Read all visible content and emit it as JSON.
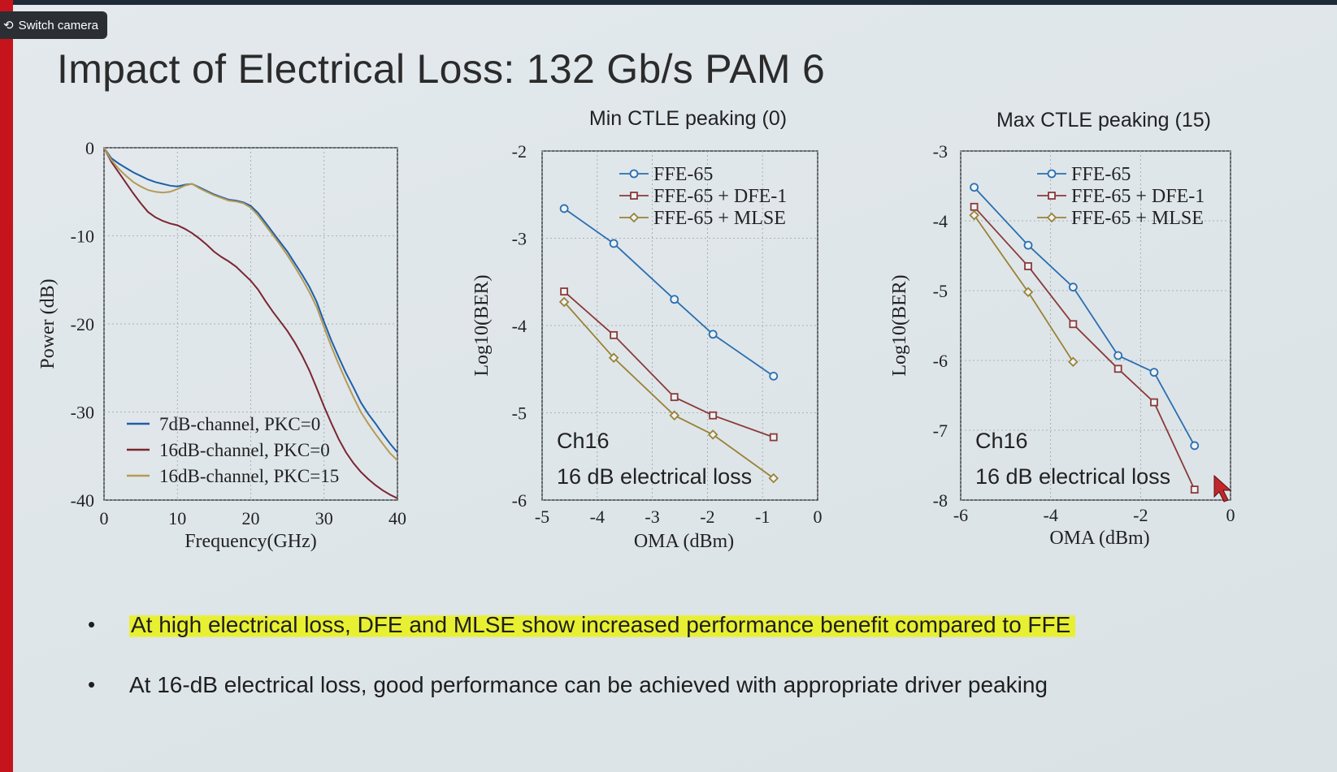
{
  "camera_button": {
    "label": "Switch camera",
    "icon": "switch-camera-icon"
  },
  "slide": {
    "title": "Impact of Electrical Loss: 132 Gb/s PAM 6",
    "bullets": [
      "At high electrical loss, DFE and MLSE show increased performance benefit compared to FFE",
      "At 16-dB electrical loss, good performance can be achieved with appropriate driver peaking"
    ],
    "highlight_color": "#e8f028"
  },
  "chart_data": [
    {
      "type": "line",
      "title": "",
      "xlabel": "Frequency(GHz)",
      "ylabel": "Power (dB)",
      "xlim": [
        0,
        40
      ],
      "ylim": [
        -40,
        0
      ],
      "xticks": [
        0,
        10,
        20,
        30,
        40
      ],
      "yticks": [
        0,
        -10,
        -20,
        -30,
        -40
      ],
      "grid": true,
      "legend": "bottom-left",
      "series": [
        {
          "name": "7dB-channel, PKC=0",
          "color": "#1f5fa6",
          "x": [
            0,
            1,
            2,
            3,
            4,
            5,
            6,
            7,
            8,
            9,
            10,
            11,
            12,
            13,
            14,
            15,
            16,
            17,
            18,
            19,
            20,
            21,
            22,
            23,
            24,
            25,
            26,
            27,
            28,
            29,
            30,
            31,
            32,
            33,
            34,
            35,
            36,
            37,
            38,
            39,
            40
          ],
          "y": [
            0,
            -1.2,
            -1.8,
            -2.3,
            -2.8,
            -3.2,
            -3.6,
            -3.9,
            -4.1,
            -4.3,
            -4.4,
            -4.2,
            -4.1,
            -4.5,
            -4.9,
            -5.3,
            -5.6,
            -5.9,
            -6.0,
            -6.2,
            -6.6,
            -7.4,
            -8.5,
            -9.6,
            -10.7,
            -11.8,
            -13.1,
            -14.4,
            -15.8,
            -17.5,
            -19.8,
            -21.9,
            -23.8,
            -25.6,
            -27.2,
            -28.9,
            -30.2,
            -31.3,
            -32.5,
            -33.6,
            -34.6
          ]
        },
        {
          "name": "16dB-channel, PKC=0",
          "color": "#7a2630",
          "x": [
            0,
            1,
            2,
            3,
            4,
            5,
            6,
            7,
            8,
            9,
            10,
            11,
            12,
            13,
            14,
            15,
            16,
            17,
            18,
            19,
            20,
            21,
            22,
            23,
            24,
            25,
            26,
            27,
            28,
            29,
            30,
            31,
            32,
            33,
            34,
            35,
            36,
            37,
            38,
            39,
            40
          ],
          "y": [
            0,
            -1.6,
            -2.8,
            -4.0,
            -5.2,
            -6.3,
            -7.3,
            -7.9,
            -8.3,
            -8.6,
            -8.8,
            -9.2,
            -9.7,
            -10.3,
            -11.0,
            -11.8,
            -12.4,
            -12.9,
            -13.5,
            -14.3,
            -15.1,
            -16.1,
            -17.4,
            -18.6,
            -19.7,
            -20.8,
            -22.1,
            -23.6,
            -25.3,
            -27.3,
            -29.4,
            -31.3,
            -33.1,
            -34.6,
            -35.8,
            -36.8,
            -37.6,
            -38.3,
            -38.9,
            -39.4,
            -39.8
          ]
        },
        {
          "name": "16dB-channel, PKC=15",
          "color": "#b59a55",
          "x": [
            0,
            1,
            2,
            3,
            4,
            5,
            6,
            7,
            8,
            9,
            10,
            11,
            12,
            13,
            14,
            15,
            16,
            17,
            18,
            19,
            20,
            21,
            22,
            23,
            24,
            25,
            26,
            27,
            28,
            29,
            30,
            31,
            32,
            33,
            34,
            35,
            36,
            37,
            38,
            39,
            40
          ],
          "y": [
            0,
            -1.4,
            -2.4,
            -3.2,
            -3.9,
            -4.4,
            -4.8,
            -5.0,
            -5.1,
            -5.0,
            -4.7,
            -4.3,
            -4.1,
            -4.6,
            -5.0,
            -5.4,
            -5.7,
            -6.0,
            -6.1,
            -6.3,
            -6.8,
            -7.7,
            -8.8,
            -9.9,
            -11.0,
            -12.2,
            -13.5,
            -14.9,
            -16.4,
            -18.1,
            -20.4,
            -22.6,
            -24.6,
            -26.5,
            -28.3,
            -30.0,
            -31.3,
            -32.5,
            -33.6,
            -34.7,
            -35.5
          ]
        }
      ]
    },
    {
      "type": "line",
      "title": "Min CTLE peaking (0)",
      "xlabel": "OMA (dBm)",
      "ylabel": "Log10(BER)",
      "xlim": [
        -5,
        0
      ],
      "ylim": [
        -6,
        -2
      ],
      "xticks": [
        -5,
        -4,
        -3,
        -2,
        -1,
        0
      ],
      "yticks": [
        -2,
        -3,
        -4,
        -5,
        -6
      ],
      "grid": true,
      "legend": "top-right",
      "annotations": [
        "Ch16",
        "16 dB electrical loss"
      ],
      "series": [
        {
          "name": "FFE-65",
          "marker": "circle",
          "color": "#2a6fb0",
          "x": [
            -4.6,
            -3.7,
            -2.6,
            -1.9,
            -0.8
          ],
          "y": [
            -2.66,
            -3.06,
            -3.7,
            -4.1,
            -4.58
          ]
        },
        {
          "name": "FFE-65 + DFE-1",
          "marker": "square",
          "color": "#8a3a38",
          "x": [
            -4.6,
            -3.7,
            -2.6,
            -1.9,
            -0.8
          ],
          "y": [
            -3.61,
            -4.11,
            -4.82,
            -5.03,
            -5.28
          ]
        },
        {
          "name": "FFE-65 + MLSE",
          "marker": "diamond",
          "color": "#9a8235",
          "x": [
            -4.6,
            -3.7,
            -2.6,
            -1.9,
            -0.8
          ],
          "y": [
            -3.73,
            -4.37,
            -5.03,
            -5.25,
            -5.75
          ]
        }
      ]
    },
    {
      "type": "line",
      "title": "Max CTLE peaking (15)",
      "xlabel": "OMA (dBm)",
      "ylabel": "Log10(BER)",
      "xlim": [
        -6,
        0
      ],
      "ylim": [
        -8,
        -3
      ],
      "xticks": [
        -6,
        -4,
        -2,
        0
      ],
      "yticks": [
        -3,
        -4,
        -5,
        -6,
        -7,
        -8
      ],
      "grid": true,
      "legend": "top-right",
      "annotations": [
        "Ch16",
        "16 dB electrical loss"
      ],
      "series": [
        {
          "name": "FFE-65",
          "marker": "circle",
          "color": "#2a6fb0",
          "x": [
            -5.7,
            -4.5,
            -3.5,
            -2.5,
            -1.7,
            -0.8
          ],
          "y": [
            -3.52,
            -4.35,
            -4.95,
            -5.93,
            -6.17,
            -7.22
          ]
        },
        {
          "name": "FFE-65 + DFE-1",
          "marker": "square",
          "color": "#8a3a38",
          "x": [
            -5.7,
            -4.5,
            -3.5,
            -2.5,
            -1.7,
            -0.8
          ],
          "y": [
            -3.8,
            -4.65,
            -5.48,
            -6.12,
            -6.6,
            -7.85
          ]
        },
        {
          "name": "FFE-65 + MLSE",
          "marker": "diamond",
          "color": "#9a8235",
          "x": [
            -5.7,
            -4.5,
            -3.5
          ],
          "y": [
            -3.92,
            -5.02,
            -6.02
          ]
        }
      ]
    }
  ]
}
